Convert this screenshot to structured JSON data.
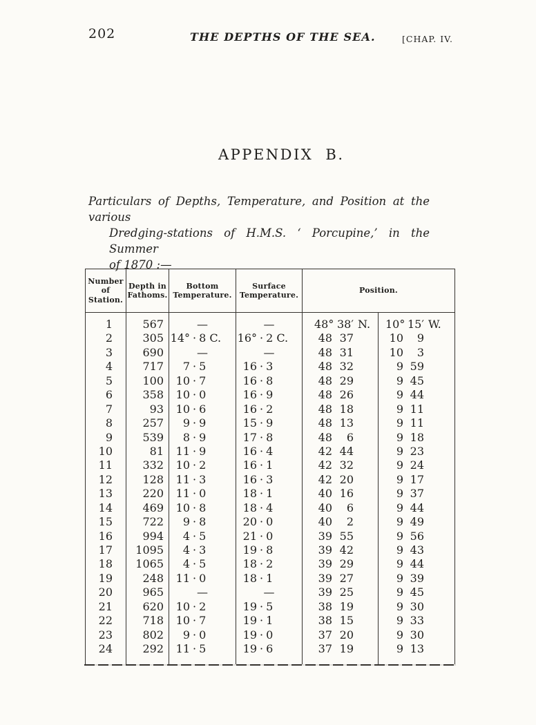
{
  "page": {
    "number": "202",
    "running_head": "THE DEPTHS OF THE SEA.",
    "chapter_ref": "[CHAP. IV."
  },
  "appendix": {
    "title": "APPENDIX B.",
    "intro_lines": [
      "Particulars of Depths, Temperature, and Position at the various",
      "Dredging-stations of H.M.S. ‘ Porcupine,’ in the Summer",
      "of 1870 :—"
    ]
  },
  "table": {
    "headers": [
      "Number\nof Station.",
      "Depth in\nFathoms.",
      "Bottom\nTemperature.",
      "Surface\nTemperature.",
      "Position."
    ],
    "missing_value": "—",
    "rows": [
      {
        "station": "1",
        "depth": "567",
        "bottom_temp": "—",
        "surface_temp": "—",
        "lat": {
          "deg": "48°",
          "min": "38′",
          "hemi": "N."
        },
        "lon": {
          "deg": "10°",
          "min": "15′",
          "hemi": "W."
        }
      },
      {
        "station": "2",
        "depth": "305",
        "bottom_temp": "14°·8 C.",
        "surface_temp": "16°·2 C.",
        "lat": {
          "deg": "48",
          "min": "37",
          "hemi": ""
        },
        "lon": {
          "deg": "10",
          "min": "9",
          "hemi": ""
        }
      },
      {
        "station": "3",
        "depth": "690",
        "bottom_temp": "—",
        "surface_temp": "—",
        "lat": {
          "deg": "48",
          "min": "31",
          "hemi": ""
        },
        "lon": {
          "deg": "10",
          "min": "3",
          "hemi": ""
        }
      },
      {
        "station": "4",
        "depth": "717",
        "bottom_temp": "7·5",
        "surface_temp": "16·3",
        "lat": {
          "deg": "48",
          "min": "32",
          "hemi": ""
        },
        "lon": {
          "deg": "9",
          "min": "59",
          "hemi": ""
        }
      },
      {
        "station": "5",
        "depth": "100",
        "bottom_temp": "10·7",
        "surface_temp": "16·8",
        "lat": {
          "deg": "48",
          "min": "29",
          "hemi": ""
        },
        "lon": {
          "deg": "9",
          "min": "45",
          "hemi": ""
        }
      },
      {
        "station": "6",
        "depth": "358",
        "bottom_temp": "10·0",
        "surface_temp": "16·9",
        "lat": {
          "deg": "48",
          "min": "26",
          "hemi": ""
        },
        "lon": {
          "deg": "9",
          "min": "44",
          "hemi": ""
        }
      },
      {
        "station": "7",
        "depth": "93",
        "bottom_temp": "10·6",
        "surface_temp": "16·2",
        "lat": {
          "deg": "48",
          "min": "18",
          "hemi": ""
        },
        "lon": {
          "deg": "9",
          "min": "11",
          "hemi": ""
        }
      },
      {
        "station": "8",
        "depth": "257",
        "bottom_temp": "9·9",
        "surface_temp": "15·9",
        "lat": {
          "deg": "48",
          "min": "13",
          "hemi": ""
        },
        "lon": {
          "deg": "9",
          "min": "11",
          "hemi": ""
        }
      },
      {
        "station": "9",
        "depth": "539",
        "bottom_temp": "8·9",
        "surface_temp": "17·8",
        "lat": {
          "deg": "48",
          "min": "6",
          "hemi": ""
        },
        "lon": {
          "deg": "9",
          "min": "18",
          "hemi": ""
        }
      },
      {
        "station": "10",
        "depth": "81",
        "bottom_temp": "11·9",
        "surface_temp": "16·4",
        "lat": {
          "deg": "42",
          "min": "44",
          "hemi": ""
        },
        "lon": {
          "deg": "9",
          "min": "23",
          "hemi": ""
        }
      },
      {
        "station": "11",
        "depth": "332",
        "bottom_temp": "10·2",
        "surface_temp": "16·1",
        "lat": {
          "deg": "42",
          "min": "32",
          "hemi": ""
        },
        "lon": {
          "deg": "9",
          "min": "24",
          "hemi": ""
        }
      },
      {
        "station": "12",
        "depth": "128",
        "bottom_temp": "11·3",
        "surface_temp": "16·3",
        "lat": {
          "deg": "42",
          "min": "20",
          "hemi": ""
        },
        "lon": {
          "deg": "9",
          "min": "17",
          "hemi": ""
        }
      },
      {
        "station": "13",
        "depth": "220",
        "bottom_temp": "11·0",
        "surface_temp": "18·1",
        "lat": {
          "deg": "40",
          "min": "16",
          "hemi": ""
        },
        "lon": {
          "deg": "9",
          "min": "37",
          "hemi": ""
        }
      },
      {
        "station": "14",
        "depth": "469",
        "bottom_temp": "10·8",
        "surface_temp": "18·4",
        "lat": {
          "deg": "40",
          "min": "6",
          "hemi": ""
        },
        "lon": {
          "deg": "9",
          "min": "44",
          "hemi": ""
        }
      },
      {
        "station": "15",
        "depth": "722",
        "bottom_temp": "9·8",
        "surface_temp": "20·0",
        "lat": {
          "deg": "40",
          "min": "2",
          "hemi": ""
        },
        "lon": {
          "deg": "9",
          "min": "49",
          "hemi": ""
        }
      },
      {
        "station": "16",
        "depth": "994",
        "bottom_temp": "4·5",
        "surface_temp": "21·0",
        "lat": {
          "deg": "39",
          "min": "55",
          "hemi": ""
        },
        "lon": {
          "deg": "9",
          "min": "56",
          "hemi": ""
        }
      },
      {
        "station": "17",
        "depth": "1095",
        "bottom_temp": "4·3",
        "surface_temp": "19·8",
        "lat": {
          "deg": "39",
          "min": "42",
          "hemi": ""
        },
        "lon": {
          "deg": "9",
          "min": "43",
          "hemi": ""
        }
      },
      {
        "station": "18",
        "depth": "1065",
        "bottom_temp": "4·5",
        "surface_temp": "18·2",
        "lat": {
          "deg": "39",
          "min": "29",
          "hemi": ""
        },
        "lon": {
          "deg": "9",
          "min": "44",
          "hemi": ""
        }
      },
      {
        "station": "19",
        "depth": "248",
        "bottom_temp": "11·0",
        "surface_temp": "18·1",
        "lat": {
          "deg": "39",
          "min": "27",
          "hemi": ""
        },
        "lon": {
          "deg": "9",
          "min": "39",
          "hemi": ""
        }
      },
      {
        "station": "20",
        "depth": "965",
        "bottom_temp": "—",
        "surface_temp": "—",
        "lat": {
          "deg": "39",
          "min": "25",
          "hemi": ""
        },
        "lon": {
          "deg": "9",
          "min": "45",
          "hemi": ""
        }
      },
      {
        "station": "21",
        "depth": "620",
        "bottom_temp": "10·2",
        "surface_temp": "19·5",
        "lat": {
          "deg": "38",
          "min": "19",
          "hemi": ""
        },
        "lon": {
          "deg": "9",
          "min": "30",
          "hemi": ""
        }
      },
      {
        "station": "22",
        "depth": "718",
        "bottom_temp": "10·7",
        "surface_temp": "19·1",
        "lat": {
          "deg": "38",
          "min": "15",
          "hemi": ""
        },
        "lon": {
          "deg": "9",
          "min": "33",
          "hemi": ""
        }
      },
      {
        "station": "23",
        "depth": "802",
        "bottom_temp": "9·0",
        "surface_temp": "19·0",
        "lat": {
          "deg": "37",
          "min": "20",
          "hemi": ""
        },
        "lon": {
          "deg": "9",
          "min": "30",
          "hemi": ""
        }
      },
      {
        "station": "24",
        "depth": "292",
        "bottom_temp": "11·5",
        "surface_temp": "19·6",
        "lat": {
          "deg": "37",
          "min": "19",
          "hemi": ""
        },
        "lon": {
          "deg": "9",
          "min": "13",
          "hemi": ""
        }
      }
    ]
  },
  "colors": {
    "paper": "#fcfbf7",
    "ink": "#201f1d",
    "rule": "#34312d"
  }
}
